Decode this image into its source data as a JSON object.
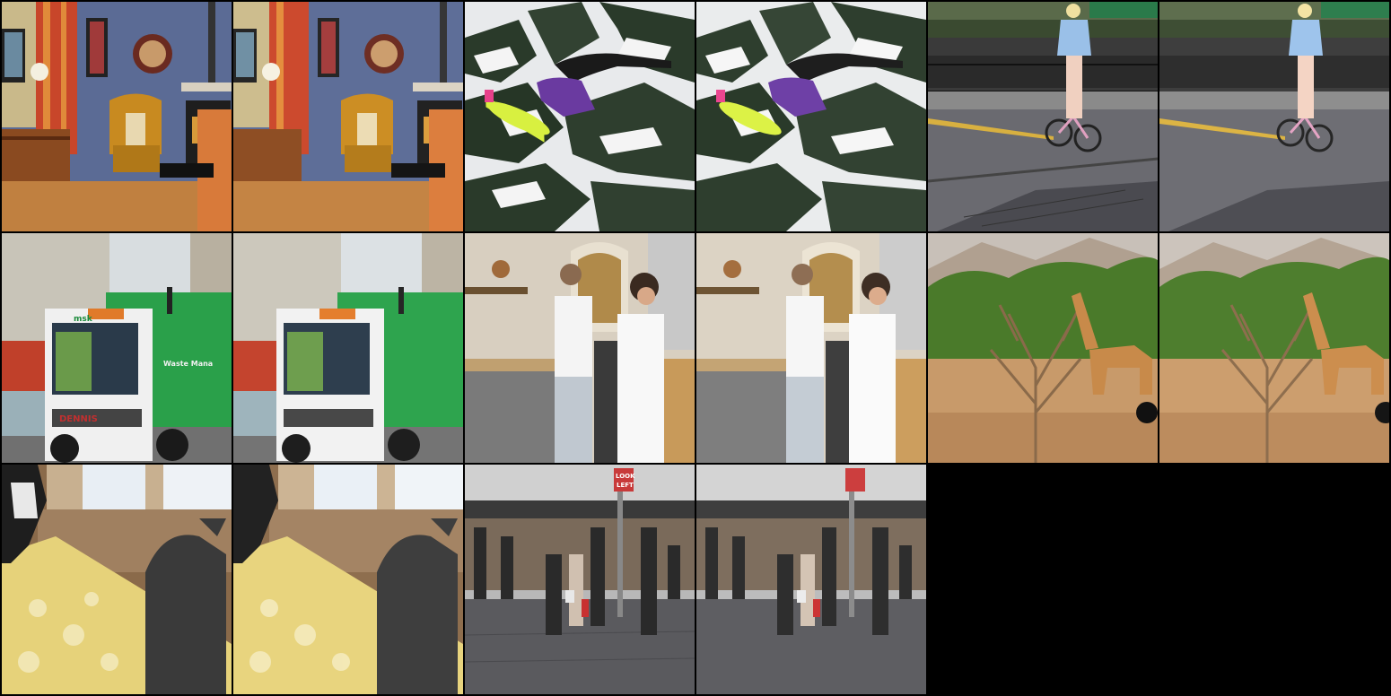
{
  "grid": {
    "columns": 6,
    "rows": 3,
    "background": "#000000"
  },
  "pairs": [
    {
      "subject": "living-room",
      "variants": [
        "original",
        "reconstruction"
      ]
    },
    {
      "subject": "snowboarder-over-pine-tree",
      "variants": [
        "original",
        "reconstruction"
      ]
    },
    {
      "subject": "cyclist-on-street",
      "variants": [
        "original",
        "reconstruction"
      ]
    },
    {
      "subject": "green-garbage-truck",
      "variants": [
        "original",
        "reconstruction"
      ]
    },
    {
      "subject": "chefs-in-kitchen",
      "variants": [
        "original",
        "reconstruction"
      ]
    },
    {
      "subject": "giraffe-behind-dry-tree",
      "variants": [
        "original",
        "reconstruction"
      ]
    },
    {
      "subject": "cats-on-window-seat",
      "variants": [
        "original",
        "reconstruction"
      ]
    },
    {
      "subject": "pedestrians-on-wet-street",
      "variants": [
        "original",
        "reconstruction"
      ]
    }
  ],
  "scene_text": {
    "street_sign": [
      "LOOK",
      "LEFT"
    ],
    "truck_brand": "DENNIS",
    "truck_logo": "msk",
    "truck_side": "Waste Mana"
  },
  "palette": {
    "wall_blue": "#5b6b95",
    "floor_wood": "#b8772f",
    "truck_green": "#2aa04a",
    "snow": "#e8eaec",
    "pine": "#2a3a2a",
    "jacket_purple": "#6a3aa0",
    "board_yellow": "#d8f040",
    "desert": "#c89a6a",
    "cushion_yellow": "#e6d27a"
  }
}
